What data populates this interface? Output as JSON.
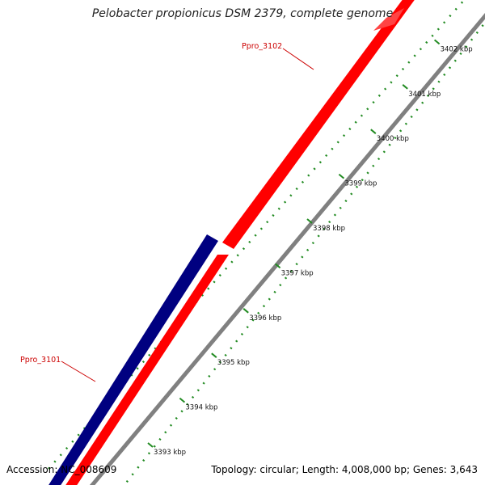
{
  "title": "Pelobacter propionicus DSM 2379, complete genome",
  "accession_label": "Accession: NC_008609",
  "summary": "Topology: circular; Length: 4,008,000 bp; Genes: 3,643",
  "scale_ticks": [
    "3393 kbp",
    "3394 kbp",
    "3395 kbp",
    "3396 kbp",
    "3397 kbp",
    "3398 kbp",
    "3399 kbp",
    "3400 kbp",
    "3401 kbp",
    "3402 kbp"
  ],
  "genes": [
    {
      "name": "Ppro_3101",
      "strand": "reverse",
      "color": "#000080"
    },
    {
      "name": "Ppro_3102",
      "strand": "forward",
      "color": "#ff0000"
    }
  ],
  "colors": {
    "reverse_gene": "#000080",
    "forward_gene": "#ff0000",
    "backbone": "#808080",
    "dots": "#228b22",
    "label": "#cc0000"
  }
}
